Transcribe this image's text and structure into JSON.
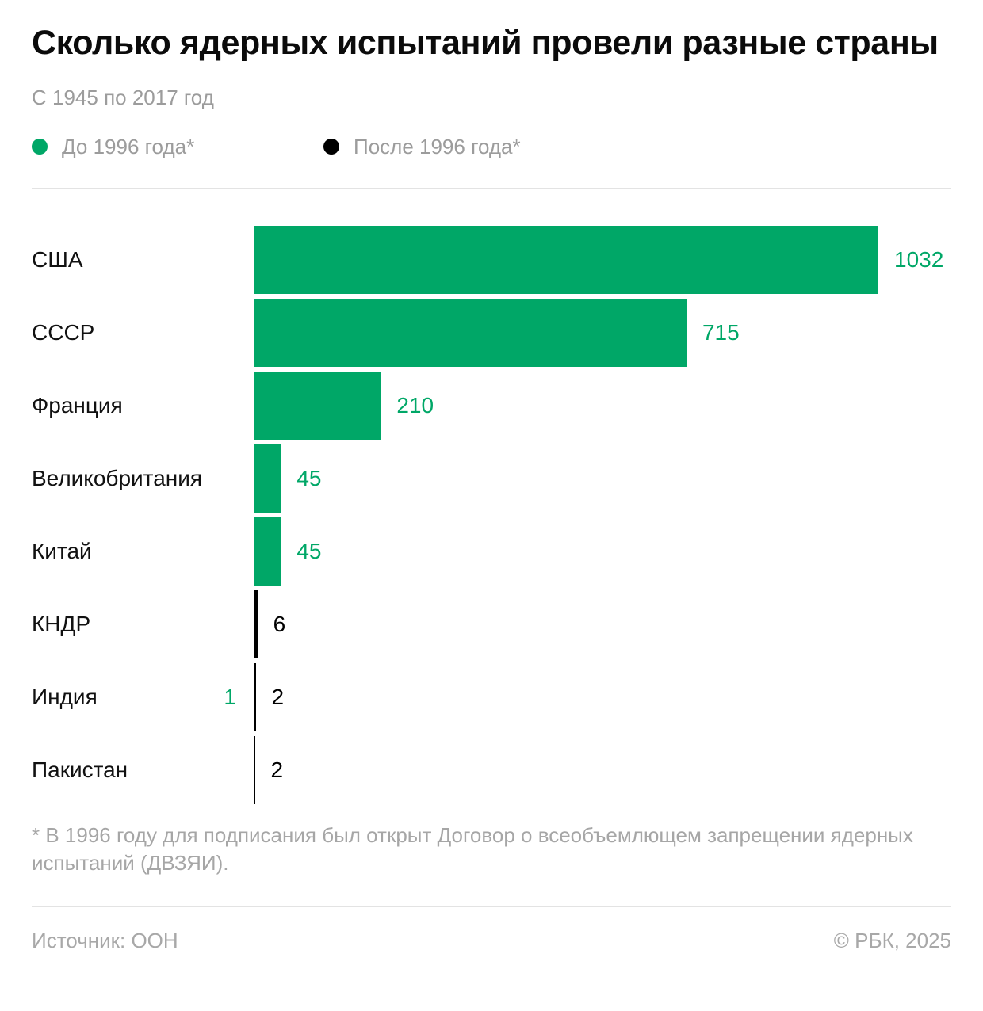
{
  "header": {
    "title": "Сколько ядерных испытаний провели разные страны",
    "subtitle": "С 1945 по 2017 год"
  },
  "legend": {
    "items": [
      {
        "label": "До 1996 года*",
        "color": "#00a767",
        "icon": "circle-icon"
      },
      {
        "label": "После 1996 года*",
        "color": "#000000",
        "icon": "circle-icon"
      }
    ]
  },
  "chart_data": {
    "type": "bar",
    "orientation": "horizontal",
    "title": "Сколько ядерных испытаний провели разные страны",
    "subtitle": "С 1945 по 2017 год",
    "categories": [
      "США",
      "СССР",
      "Франция",
      "Великобритания",
      "Китай",
      "КНДР",
      "Индия",
      "Пакистан"
    ],
    "series": [
      {
        "name": "До 1996 года*",
        "color": "#00a767",
        "values": [
          1032,
          715,
          210,
          45,
          45,
          0,
          1,
          0
        ]
      },
      {
        "name": "После 1996 года*",
        "color": "#000000",
        "values": [
          0,
          0,
          0,
          0,
          0,
          6,
          2,
          2
        ]
      }
    ],
    "xlim": [
      0,
      1032
    ],
    "grid": false,
    "axes_hidden": true,
    "value_labels_shown": true,
    "legend_position": "top"
  },
  "footnote": "* В 1996 году для подписания был открыт Договор о всеобъемлющем запрещении ядерных испытаний (ДВЗЯИ).",
  "footer": {
    "source": "Источник: ООН",
    "copyright": "© РБК, 2025"
  },
  "colors": {
    "accent_green": "#00a767",
    "accent_black": "#000000",
    "muted_text": "#9c9c9c",
    "divider": "#e3e3e3"
  }
}
